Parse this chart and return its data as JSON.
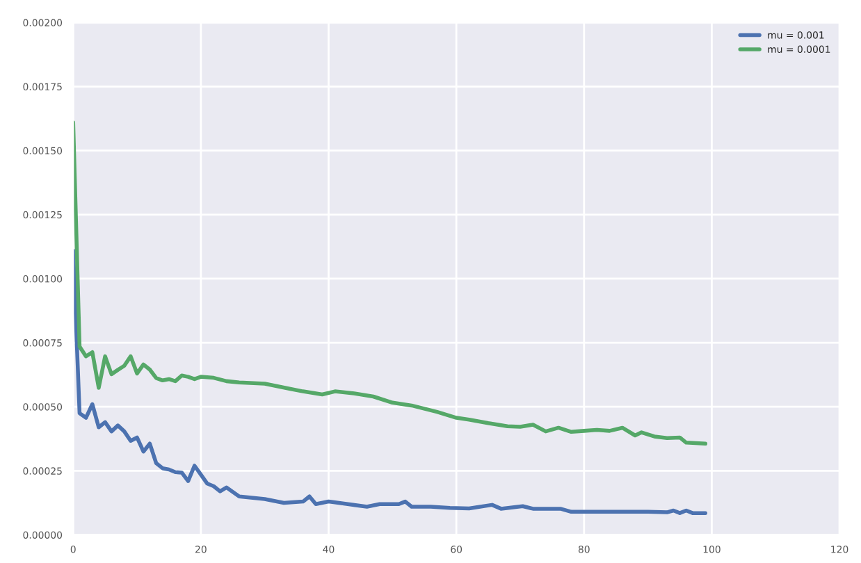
{
  "chart_data": {
    "type": "line",
    "xlim": [
      0,
      120
    ],
    "ylim": [
      0,
      0.002
    ],
    "xticks": [
      0,
      20,
      40,
      60,
      80,
      100,
      120
    ],
    "yticks": [
      {
        "value": 0,
        "label": "0.00000"
      },
      {
        "value": 0.00025,
        "label": "0.00025"
      },
      {
        "value": 0.0005,
        "label": "0.00050"
      },
      {
        "value": 0.00075,
        "label": "0.00075"
      },
      {
        "value": 0.001,
        "label": "0.00100"
      },
      {
        "value": 0.00125,
        "label": "0.00125"
      },
      {
        "value": 0.0015,
        "label": "0.00150"
      },
      {
        "value": 0.00175,
        "label": "0.00175"
      },
      {
        "value": 0.002,
        "label": "0.00200"
      }
    ],
    "grid": true,
    "legend": "top right",
    "line_style": "solid",
    "marker": "none",
    "series": [
      {
        "name": "mu = 0.001",
        "color": "#4c72b0",
        "x": [
          0,
          1,
          2,
          3,
          4,
          5,
          6,
          7,
          8,
          9,
          10,
          11,
          12,
          13,
          14,
          15,
          16,
          17,
          18,
          19,
          20,
          21,
          22,
          23,
          24,
          26,
          30,
          33,
          36,
          37,
          38,
          40,
          43,
          46,
          48,
          51,
          52,
          53,
          56,
          59,
          62,
          65.6,
          67,
          70.4,
          72,
          76.3,
          78,
          82,
          86,
          90,
          93,
          94,
          95,
          96,
          97,
          99
        ],
        "values": [
          0.00111,
          0.000475,
          0.000457,
          0.00051,
          0.00042,
          0.00044,
          0.000404,
          0.000427,
          0.000404,
          0.000367,
          0.00038,
          0.000325,
          0.000356,
          0.00028,
          0.00026,
          0.000255,
          0.000245,
          0.000243,
          0.00021,
          0.00027,
          0.000235,
          0.0002,
          0.00019,
          0.00017,
          0.000185,
          0.00015,
          0.00014,
          0.000125,
          0.00013,
          0.00015,
          0.00012,
          0.00013,
          0.00012,
          0.00011,
          0.00012,
          0.00012,
          0.00013,
          0.00011,
          0.00011,
          0.000105,
          0.000103,
          0.000117,
          0.000102,
          0.000112,
          0.000102,
          0.000102,
          9e-05,
          9e-05,
          9e-05,
          9e-05,
          8.8e-05,
          9.5e-05,
          8.5e-05,
          9.5e-05,
          8.5e-05,
          8.5e-05
        ]
      },
      {
        "name": "mu = 0.0001",
        "color": "#55a868",
        "x": [
          0,
          1,
          2,
          3,
          4,
          5,
          6,
          7,
          8,
          9,
          10,
          11,
          12,
          13,
          14,
          15,
          16,
          17,
          18,
          19,
          20,
          22,
          24,
          26,
          30,
          34,
          36,
          39,
          41,
          44,
          47,
          50,
          53,
          57,
          60,
          62,
          65,
          68,
          70,
          72,
          74,
          76,
          78,
          80,
          82,
          84,
          86,
          88,
          89,
          91,
          93,
          95,
          96,
          99
        ],
        "values": [
          0.00161,
          0.000735,
          0.000697,
          0.000713,
          0.000574,
          0.000697,
          0.000627,
          0.000644,
          0.00066,
          0.000697,
          0.00063,
          0.000665,
          0.000645,
          0.000612,
          0.000603,
          0.000608,
          0.0006,
          0.000622,
          0.000617,
          0.000608,
          0.000617,
          0.000613,
          0.0006,
          0.000595,
          0.00059,
          0.00057,
          0.00056,
          0.000548,
          0.00056,
          0.000552,
          0.00054,
          0.000516,
          0.000505,
          0.00048,
          0.000457,
          0.00045,
          0.000436,
          0.000424,
          0.000422,
          0.00043,
          0.000404,
          0.000418,
          0.000402,
          0.000406,
          0.00041,
          0.000406,
          0.000418,
          0.000388,
          0.0004,
          0.000384,
          0.000378,
          0.00038,
          0.00036,
          0.000356
        ]
      }
    ]
  }
}
